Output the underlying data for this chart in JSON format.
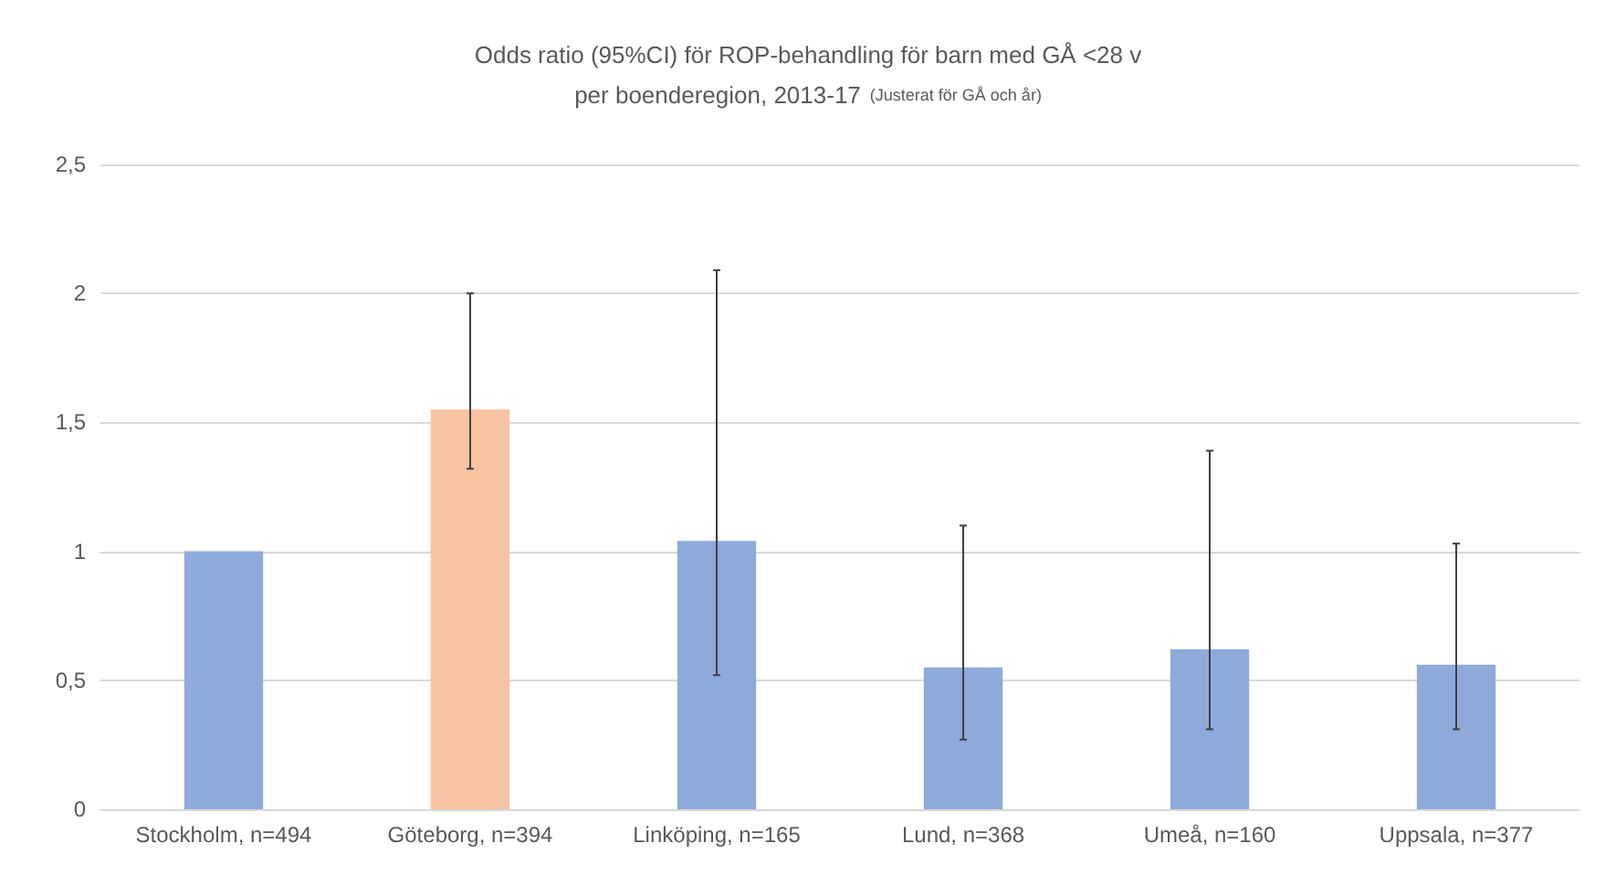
{
  "chart_data": {
    "type": "bar",
    "title": "Odds ratio (95%CI) för ROP-behandling för barn med GÅ <28 v\nper boenderegion, 2013-17",
    "subtitle": "(Justerat för GÅ och år)",
    "categories": [
      "Stockholm, n=494",
      "Göteborg, n=394",
      "Linköping, n=165",
      "Lund, n=368",
      "Umeå, n=160",
      "Uppsala, n=377"
    ],
    "values": [
      1,
      1.55,
      1.04,
      0.55,
      0.62,
      0.56
    ],
    "colors": [
      "#8eaadb",
      "#f7c3a0",
      "#8eaadb",
      "#8eaadb",
      "#8eaadb",
      "#8eaadb"
    ],
    "errors": [
      null,
      [
        1.32,
        2.0
      ],
      [
        0.52,
        2.09
      ],
      [
        0.27,
        1.1
      ],
      [
        0.31,
        1.39
      ],
      [
        0.31,
        1.03
      ]
    ],
    "ylim": [
      0,
      2.5
    ],
    "yticks": [
      0,
      {
        "value": 0.5,
        "label": "0,5"
      },
      1,
      {
        "value": 1.5,
        "label": "1,5"
      },
      2,
      {
        "value": 2.5,
        "label": "2,5"
      }
    ],
    "grid": "y"
  }
}
